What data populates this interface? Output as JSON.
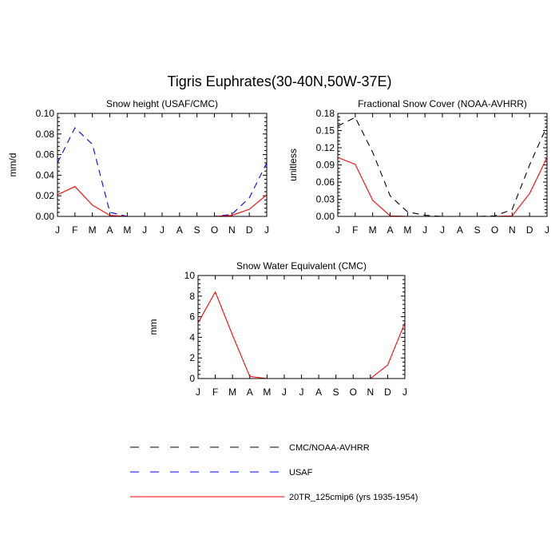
{
  "figure": {
    "title": "Tigris Euphrates(30-40N,50W-37E)"
  },
  "legend": [
    {
      "name": "CMC/NOAA-AVHRR",
      "color": "#000000",
      "dash": "dashed"
    },
    {
      "name": "USAF",
      "color": "#0000ff",
      "dash": "dashed"
    },
    {
      "name": "20TR_125cmip6 (yrs 1935-1954)",
      "color": "#ff0000",
      "dash": "solid"
    }
  ],
  "chart_data": [
    {
      "type": "line",
      "title": "Snow height (USAF/CMC)",
      "xlabel": "",
      "ylabel": "mm/d",
      "categories": [
        "J",
        "F",
        "M",
        "A",
        "M",
        "J",
        "J",
        "A",
        "S",
        "O",
        "N",
        "D",
        "J"
      ],
      "ylim": [
        0,
        0.1
      ],
      "yticks": [
        "0.00",
        "0.02",
        "0.04",
        "0.06",
        "0.08",
        "0.10"
      ],
      "series": [
        {
          "name": "USAF",
          "color": "#0000ff",
          "dash": "dashed",
          "values": [
            0.052,
            0.086,
            0.07,
            0.004,
            0.0,
            0.0,
            0.0,
            0.0,
            0.0,
            0.0,
            0.002,
            0.018,
            0.052
          ]
        },
        {
          "name": "20TR_125cmip6 (yrs 1935-1954)",
          "color": "#ff0000",
          "dash": "solid",
          "values": [
            0.021,
            0.029,
            0.011,
            0.001,
            0.0,
            0.0,
            0.0,
            0.0,
            0.0,
            0.0,
            0.001,
            0.007,
            0.021
          ]
        }
      ]
    },
    {
      "type": "line",
      "title": "Fractional Snow Cover (NOAA-AVHRR)",
      "xlabel": "",
      "ylabel": "unitless",
      "categories": [
        "J",
        "F",
        "M",
        "A",
        "M",
        "J",
        "J",
        "A",
        "S",
        "O",
        "N",
        "D",
        "J"
      ],
      "ylim": [
        0,
        0.18
      ],
      "yticks": [
        "0.00",
        "0.03",
        "0.06",
        "0.09",
        "0.12",
        "0.15",
        "0.18"
      ],
      "series": [
        {
          "name": "CMC/NOAA-AVHRR",
          "color": "#000000",
          "dash": "dashed",
          "values": [
            0.158,
            0.173,
            0.112,
            0.036,
            0.008,
            0.002,
            0.0,
            0.0,
            0.0,
            0.001,
            0.012,
            0.09,
            0.158
          ]
        },
        {
          "name": "20TR_125cmip6 (yrs 1935-1954)",
          "color": "#ff0000",
          "dash": "solid",
          "values": [
            0.103,
            0.091,
            0.028,
            0.001,
            0.0,
            0.0,
            0.0,
            0.0,
            0.0,
            0.0,
            0.001,
            0.04,
            0.103
          ]
        }
      ]
    },
    {
      "type": "line",
      "title": "Snow Water Equivalent (CMC)",
      "xlabel": "",
      "ylabel": "mm",
      "categories": [
        "J",
        "F",
        "M",
        "A",
        "M",
        "J",
        "J",
        "A",
        "S",
        "O",
        "N",
        "D",
        "J"
      ],
      "ylim": [
        0,
        10
      ],
      "yticks": [
        "0",
        "2",
        "4",
        "6",
        "8",
        "10"
      ],
      "series": [
        {
          "name": "CMC/NOAA-AVHRR",
          "color": "#000000",
          "dash": "dashed",
          "values": [
            0.0,
            0.0,
            0.0,
            0.0,
            0.0,
            0.0,
            0.0,
            0.0,
            0.0,
            0.0,
            0.0,
            0.0,
            0.0
          ]
        },
        {
          "name": "20TR_125cmip6 (yrs 1935-1954)",
          "color": "#ff0000",
          "dash": "solid",
          "values": [
            5.4,
            8.4,
            4.2,
            0.2,
            0.0,
            0.0,
            0.0,
            0.0,
            0.0,
            0.0,
            0.0,
            1.3,
            5.4
          ]
        }
      ]
    }
  ]
}
